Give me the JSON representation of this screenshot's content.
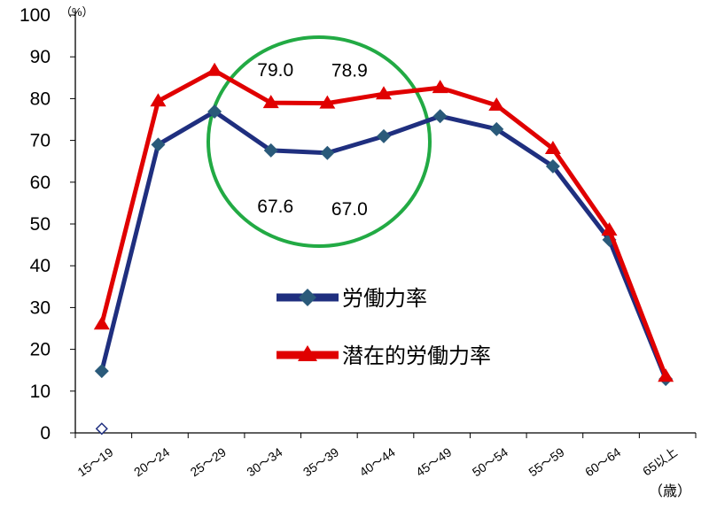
{
  "chart_data": {
    "type": "line",
    "title": "",
    "ylabel_unit": "（%）",
    "xlabel_unit": "（歳）",
    "ylim": [
      0,
      100
    ],
    "yticks": [
      0,
      10,
      20,
      30,
      40,
      50,
      60,
      70,
      80,
      90,
      100
    ],
    "categories": [
      "15～19",
      "20～24",
      "25～29",
      "30～34",
      "35～39",
      "40～44",
      "45～49",
      "50～54",
      "55～59",
      "60～64",
      "65以上"
    ],
    "series": [
      {
        "name": "労働力率",
        "color": "#1f2f7f",
        "marker": "diamond",
        "values": [
          14.8,
          69.0,
          76.9,
          67.6,
          67.0,
          71.0,
          75.8,
          72.7,
          63.8,
          46.2,
          12.9
        ]
      },
      {
        "name": "潜在的労働力率",
        "color": "#e00000",
        "marker": "triangle",
        "values": [
          26.0,
          79.4,
          86.7,
          79.0,
          78.9,
          81.1,
          82.6,
          78.4,
          68.0,
          48.5,
          13.5
        ]
      }
    ],
    "extra_point": {
      "category": "15～19",
      "value": 1.0,
      "marker": "hollow-diamond",
      "color": "#1f2f7f"
    },
    "annotations": [
      {
        "text": "79.0",
        "category": "30～34",
        "series": "潜在的労働力率"
      },
      {
        "text": "78.9",
        "category": "35～39",
        "series": "潜在的労働力率"
      },
      {
        "text": "67.6",
        "category": "30～34",
        "series": "労働力率"
      },
      {
        "text": "67.0",
        "category": "35～39",
        "series": "労働力率"
      }
    ],
    "highlight_circle_color": "#22aa44",
    "legend_position": "center",
    "grid": false
  }
}
